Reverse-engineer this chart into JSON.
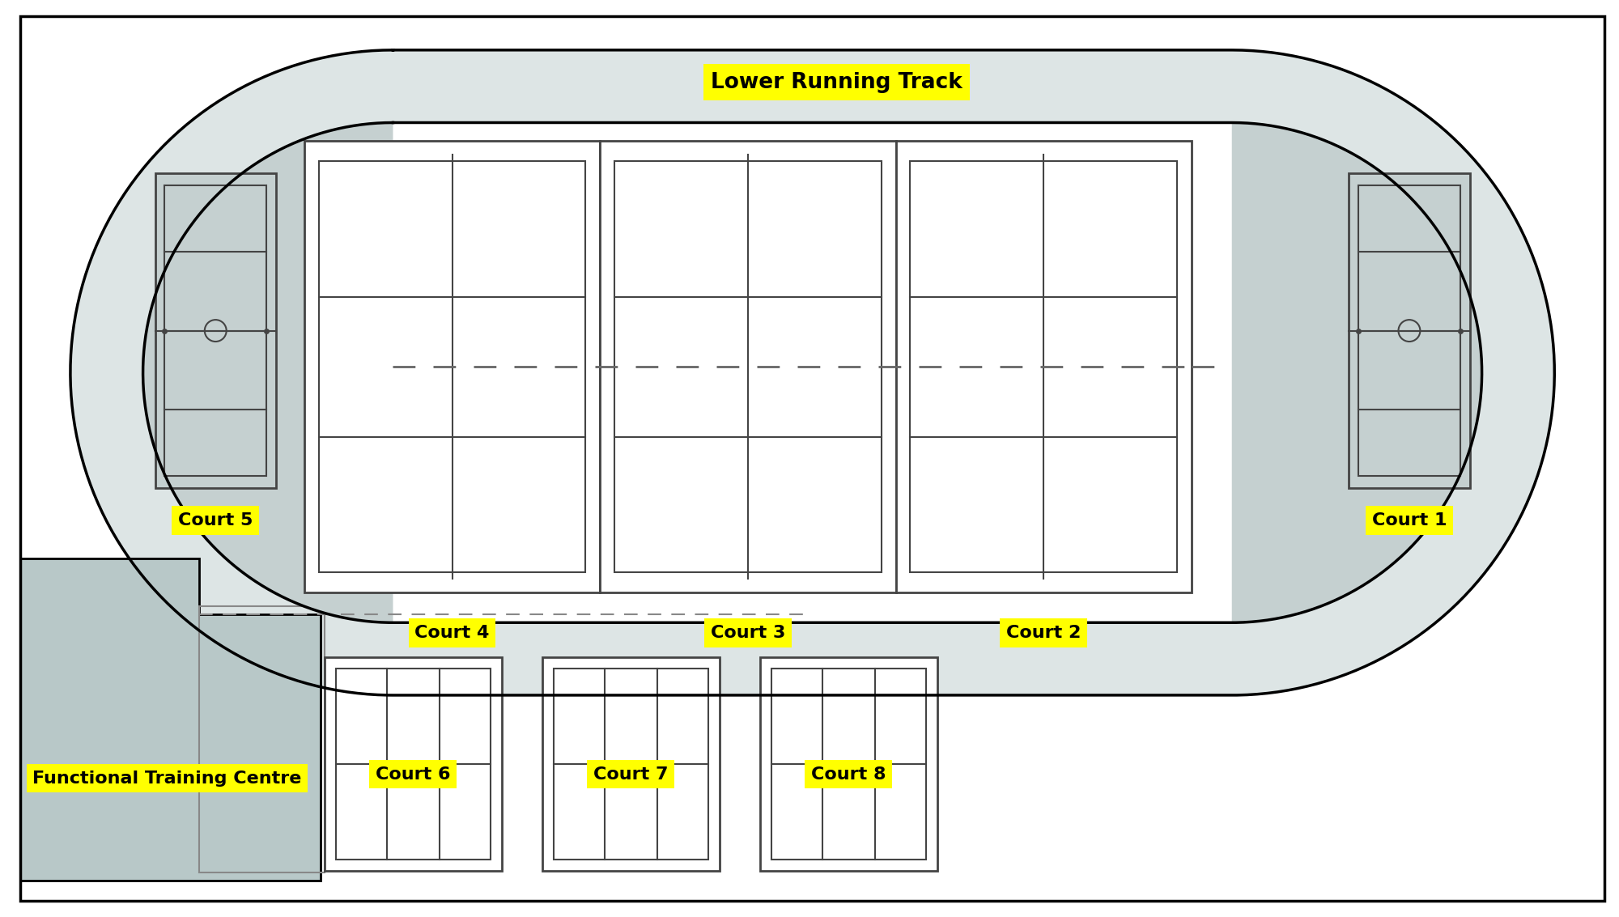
{
  "fig_width": 20.0,
  "fig_height": 11.33,
  "bg_color": "#ffffff",
  "border_color": "#000000",
  "track_fill": "#dde5e5",
  "track_inner_fill": "#ffffff",
  "grey_end_fill": "#c5d0d0",
  "ftc_fill": "#b8c8c8",
  "label_bg": "#ffff00",
  "label_text_color": "#000000",
  "title_label": "Lower Running Track",
  "court_labels": [
    "Court 5",
    "Court 4",
    "Court 3",
    "Court 2",
    "Court 1"
  ],
  "bottom_labels": [
    "Functional Training Centre",
    "Court 6",
    "Court 7",
    "Court 8"
  ],
  "court_line_color": "#444444"
}
